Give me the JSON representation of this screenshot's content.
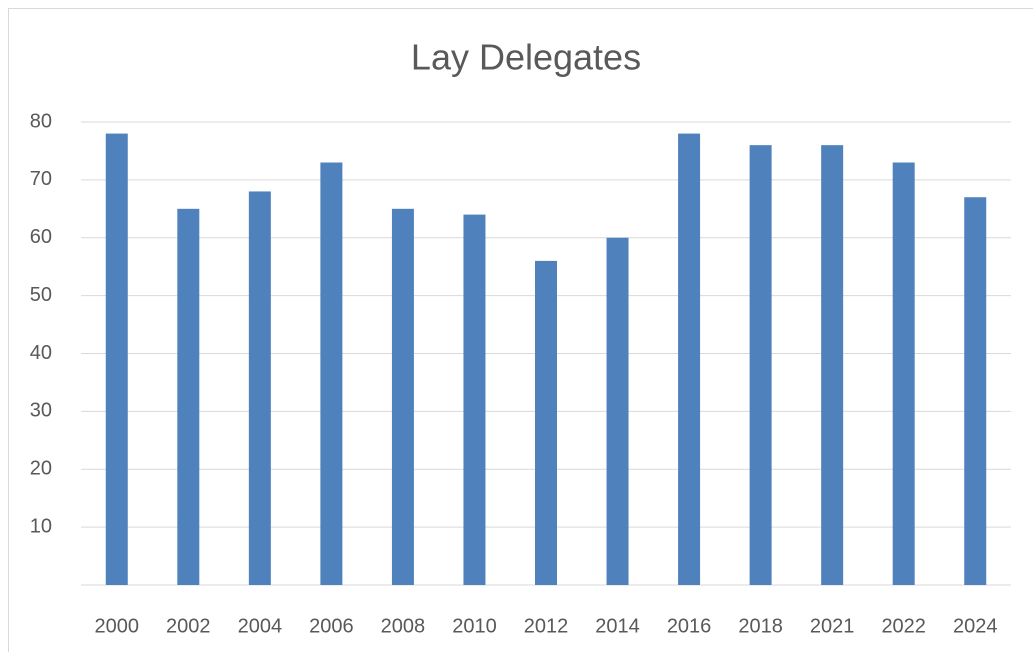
{
  "chart_data": {
    "type": "bar",
    "title": "Lay Delegates",
    "categories": [
      "2000",
      "2002",
      "2004",
      "2006",
      "2008",
      "2010",
      "2012",
      "2014",
      "2016",
      "2018",
      "2021",
      "2022",
      "2024"
    ],
    "values": [
      78,
      65,
      68,
      73,
      65,
      64,
      56,
      60,
      78,
      76,
      76,
      73,
      67
    ],
    "color": "#4f81bd",
    "ylim": [
      0,
      80
    ],
    "yticks": [
      10,
      20,
      30,
      40,
      50,
      60,
      70,
      80
    ],
    "grid": true
  }
}
